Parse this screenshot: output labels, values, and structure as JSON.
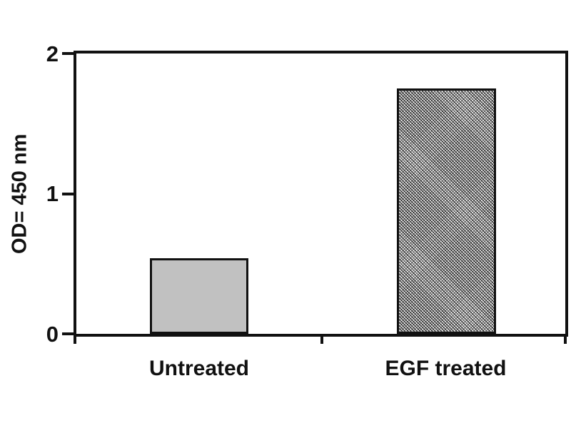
{
  "chart_data": {
    "type": "bar",
    "categories": [
      "Untreated",
      "EGF treated"
    ],
    "values": [
      0.54,
      1.75
    ],
    "title": "",
    "xlabel": "",
    "ylabel": "OD= 450 nm",
    "ylim": [
      0,
      2
    ],
    "yticks": [
      0,
      1,
      2
    ],
    "ytick_labels": [
      "0",
      "1",
      "2"
    ],
    "grid": false,
    "legend": "none",
    "axis_color": "#111111",
    "bar_styles": [
      {
        "fill": "solid",
        "color": "#c1c1c1",
        "border": "#111111"
      },
      {
        "fill": "diagonal-crosshatch",
        "color": "#111111",
        "background": "#ececec",
        "border": "#111111"
      }
    ]
  }
}
